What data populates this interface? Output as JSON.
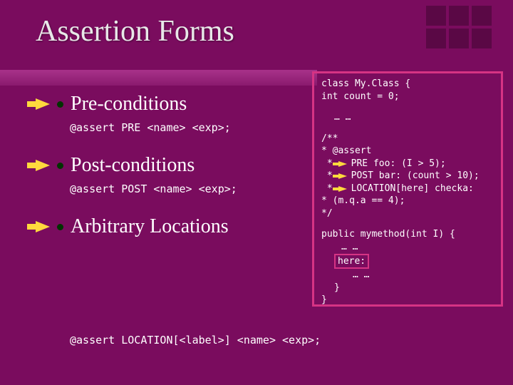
{
  "title": "Assertion Forms",
  "colors": {
    "background": "#7a0c5e",
    "title_text": "#e8e8e8",
    "bar_gradient_top": "#a8328a",
    "bar_gradient_bottom": "#8a1a6e",
    "corner_block": "#5a0845",
    "arrow_yellow": "#ffd93d",
    "bullet_dot": "#003300",
    "code_border": "#d63384",
    "text": "#ffffff"
  },
  "fonts": {
    "title_family": "Times New Roman",
    "title_size_pt": 32,
    "heading_size_pt": 21,
    "code_family": "Lucida Console",
    "code_size_pt": 11,
    "codebox_size_pt": 10
  },
  "bullets": [
    {
      "heading": "Pre-conditions",
      "code": "@assert PRE <name> <exp>;"
    },
    {
      "heading": "Post-conditions",
      "code": "@assert POST <name> <exp>;"
    },
    {
      "heading": "Arbitrary Locations",
      "code": "@assert LOCATION[<label>] <name> <exp>;"
    }
  ],
  "codebox": {
    "l1": "class My.Class {",
    "l2": "  int count = 0;",
    "gap": "… …",
    "c1": "/**",
    "c2": " * @assert",
    "c3a": "PRE  foo: (I > 5);",
    "c3b": "POST bar: (count > 10);",
    "c3c": "LOCATION[here] checka:",
    "c4": " *     (m.q.a == 4);",
    "c5": " */",
    "m1": "public mymethod(int I) {",
    "m2": "… …",
    "m3": "here:",
    "m4": "… …",
    "m5": "}",
    "m6": "}"
  }
}
